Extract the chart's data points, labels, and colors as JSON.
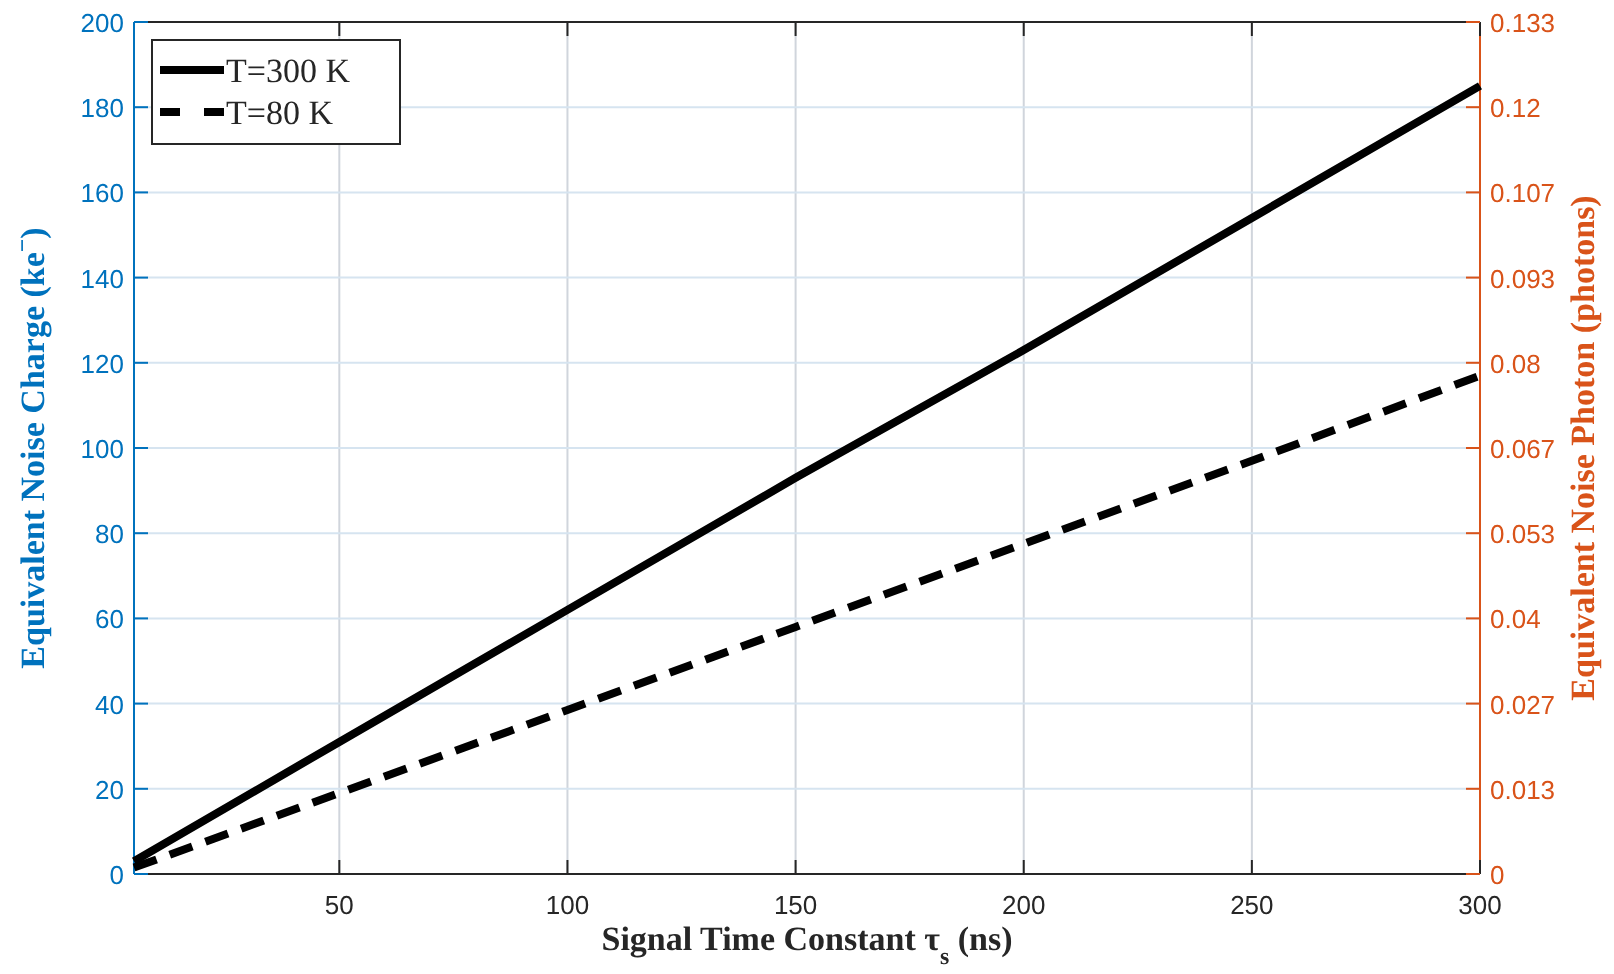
{
  "chart_data": {
    "type": "line",
    "xlabel": "Signal Time Constant τ$_{s}$ (ns)",
    "ylabel": "Equivalent Noise Charge (ke$^{−}$)",
    "y2label": "Equivalent Noise Photon (photons)",
    "x": [
      5,
      50,
      100,
      150,
      200,
      250,
      300
    ],
    "series": [
      {
        "name": "T=300 K",
        "color": "#000000",
        "line_style": "solid",
        "values": [
          3,
          31,
          62,
          93,
          123,
          154,
          185
        ]
      },
      {
        "name": "T=80 K",
        "color": "#000000",
        "line_style": "dashed",
        "values": [
          1.5,
          19,
          38.5,
          58,
          77.5,
          97,
          117
        ]
      }
    ],
    "xlim": [
      5,
      300
    ],
    "xticks": [
      50,
      100,
      150,
      200,
      250,
      300
    ],
    "ylim": [
      0,
      200
    ],
    "yticks": [
      0,
      20,
      40,
      60,
      80,
      100,
      120,
      140,
      160,
      180,
      200
    ],
    "y2lim": [
      0,
      0.13333
    ],
    "y2ticks": [
      0,
      {
        "value": 0.013333,
        "label": "0.013"
      },
      {
        "value": 0.026667,
        "label": "0.027"
      },
      0.04,
      {
        "value": 0.053333,
        "label": "0.053"
      },
      {
        "value": 0.066667,
        "label": "0.067"
      },
      0.08,
      {
        "value": 0.093333,
        "label": "0.093"
      },
      {
        "value": 0.106667,
        "label": "0.107"
      },
      0.12,
      {
        "value": 0.13333,
        "label": "0.133"
      }
    ],
    "grid": true,
    "legend": "top left",
    "marker": "none"
  }
}
